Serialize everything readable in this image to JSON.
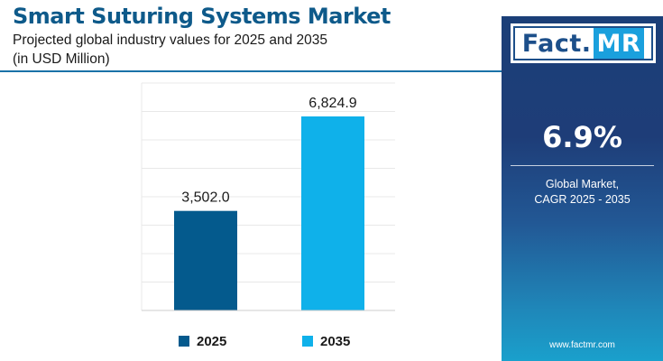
{
  "header": {
    "title": "Smart Suturing Systems Market",
    "subtitle": "Projected global industry values for 2025 and 2035",
    "unit": "(in USD Million)"
  },
  "chart_data": {
    "type": "bar",
    "title": "Smart Suturing Systems Market",
    "subtitle": "Projected global industry values for 2025 and 2035",
    "unit": "(in USD Million)",
    "categories": [
      "2025",
      "2035"
    ],
    "values": [
      3502.0,
      6824.9
    ],
    "value_labels": [
      "3,502.0",
      "6,824.9"
    ],
    "colors": [
      "#045a8d",
      "#0fb1ea"
    ],
    "ylim": [
      0,
      8000
    ],
    "grid": true,
    "legend_position": "bottom"
  },
  "legend": {
    "items": [
      {
        "label": "2025",
        "color": "#045a8d"
      },
      {
        "label": "2035",
        "color": "#0fb1ea"
      }
    ]
  },
  "sidebar": {
    "logo_fact": "Fact",
    "logo_dot": ".",
    "logo_mr": "MR",
    "cagr": "6.9%",
    "cagr_label_line1": "Global Market,",
    "cagr_label_line2": "CAGR 2025 - 2035",
    "website": "www.factmr.com"
  }
}
